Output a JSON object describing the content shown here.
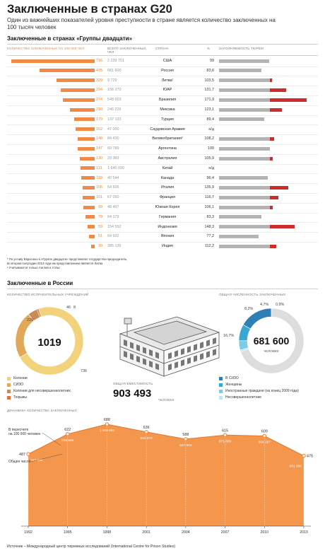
{
  "header": {
    "title": "Заключенные в странах G20",
    "intro": "Один из важнейших показателей уровня преступности в стране является количество заключенных на 100 тысяч человек"
  },
  "g20": {
    "section_title": "Заключенные в странах «Группы двадцати»",
    "col_rate": "КОЛИЧЕСТВО ЗАКЛЮЧЕННЫХ НА 100 000 ЧЕЛ.",
    "col_total_1": "ВСЕГО ЗАКЛЮЧЕННЫХ,",
    "col_total_2": "ЧЕЛ.",
    "col_country": "СТРАНА",
    "col_pct": "%",
    "col_occupancy": "ЗАПОЛНЯЕМОСТЬ ТЮРЕМ",
    "notes": [
      "* По уставу Евросоюз в «Группе двадцати» представляет государство-председатель,",
      "  во втором полугодии 2013 года им представлением является Литва",
      "² Учитываются только Англия и Уэльс"
    ]
  },
  "russia": {
    "section_title": "Заключенные в России",
    "institutions": {
      "label": "КОЛИЧЕСТВО ИСПРАВИТЕЛЬНЫХ УЧРЕЖДЕНИЙ",
      "total": "1019",
      "slice_labels": [
        "736",
        "229",
        "46",
        "8"
      ],
      "legend": [
        "Колонии",
        "СИЗО",
        "Колонии для несовершеннолетних",
        "Тюрьмы"
      ],
      "colors": [
        "#f2d27a",
        "#e2a85a",
        "#c98a55",
        "#d9773a"
      ]
    },
    "capacity": {
      "label": "ОБЩАЯ ВМЕСТИМОСТЬ",
      "value": "903 493",
      "unit": "ЧЕЛОВЕК"
    },
    "prisoners": {
      "label": "ОБЩАЯ ЧИСЛЕННОСТЬ ЗАКЛЮЧЕННЫХ",
      "total": "681 600",
      "unit": "ЧЕЛОВЕК",
      "slice_labels": [
        "16,7%",
        "8,2%",
        "4,7%",
        "0,9%"
      ],
      "legend": [
        "В СИЗО",
        "Женщины",
        "Иностранные граждане (на конец 2009 года)",
        "Несовершеннолетние"
      ],
      "colors": [
        "#2e7fb4",
        "#3aa6d4",
        "#7ccbe8",
        "#bfe3f2"
      ]
    },
    "dynamics": {
      "title": "ДИНАМИКА КОЛИЧЕСТВА ЗАКЛЮЧЕННЫХ",
      "ann_per100k_1": "В пересчете",
      "ann_per100k_2": "на 100 000 человек",
      "ann_total": "Общее число"
    }
  },
  "source": "Источник – Международный центр тюремных исследований (International Centre for Prison Studies)",
  "chart_data": [
    {
      "type": "table",
      "columns": [
        "Количество заключенных на 100 000 чел.",
        "Всего заключенных, чел.",
        "Страна",
        "%",
        "Заполняемость тюрем"
      ],
      "rows": [
        {
          "rate": 716,
          "total": "2 239 751",
          "country": "США",
          "pct": "99",
          "occupancy": 99
        },
        {
          "rate": 475,
          "total": "681 600",
          "country": "Россия",
          "pct": "83,6",
          "occupancy": 83.6
        },
        {
          "rate": 329,
          "total": "9 729",
          "country": "Литва¹",
          "pct": "103,5",
          "occupancy": 103.5
        },
        {
          "rate": 294,
          "total": "156 370",
          "country": "ЮАР",
          "pct": "131,7",
          "occupancy": 131.7
        },
        {
          "rate": 274,
          "total": "548 003",
          "country": "Бразилия",
          "pct": "171,9",
          "occupancy": 171.9
        },
        {
          "rate": 210,
          "total": "246 226",
          "country": "Мексика",
          "pct": "123,1",
          "occupancy": 123.1
        },
        {
          "rate": 179,
          "total": "137 133",
          "country": "Турция",
          "pct": "89,4",
          "occupancy": 89.4
        },
        {
          "rate": 162,
          "total": "47 000",
          "country": "Саудовская Аравия",
          "pct": "н/д",
          "occupancy": null
        },
        {
          "rate": 148,
          "total": "84 430",
          "country": "Великобритания²",
          "pct": "108,2",
          "occupancy": 108.2
        },
        {
          "rate": 147,
          "total": "60 789",
          "country": "Аргентина",
          "pct": "100",
          "occupancy": 100
        },
        {
          "rate": 130,
          "total": "29 383",
          "country": "Австралия",
          "pct": "105,9",
          "occupancy": 105.9
        },
        {
          "rate": 121,
          "total": "1 640 000",
          "country": "Китай",
          "pct": "н/д",
          "occupancy": null
        },
        {
          "rate": 118,
          "total": "40 544",
          "country": "Канада",
          "pct": "96,4",
          "occupancy": 96.4
        },
        {
          "rate": 106,
          "total": "64 835",
          "country": "Италия",
          "pct": "135,9",
          "occupancy": 135.9
        },
        {
          "rate": 101,
          "total": "67 050",
          "country": "Франция",
          "pct": "116,7",
          "occupancy": 116.7
        },
        {
          "rate": 99,
          "total": "48 497",
          "country": "Южная Корея",
          "pct": "106,1",
          "occupancy": 106.1
        },
        {
          "rate": 79,
          "total": "64 379",
          "country": "Германия",
          "pct": "83,3",
          "occupancy": 83.3
        },
        {
          "rate": 59,
          "total": "154 552",
          "country": "Индонезия",
          "pct": "148,3",
          "occupancy": 148.3
        },
        {
          "rate": 51,
          "total": "64 932",
          "country": "Япония",
          "pct": "77,2",
          "occupancy": 77.2
        },
        {
          "rate": 30,
          "total": "385 135",
          "country": "Индия",
          "pct": "112,2",
          "occupancy": 112.2
        }
      ]
    },
    {
      "type": "pie",
      "title": "КОЛИЧЕСТВО ИСПРАВИТЕЛЬНЫХ УЧРЕЖДЕНИЙ",
      "categories": [
        "Колонии",
        "СИЗО",
        "Колонии для несовершеннолетних",
        "Тюрьмы"
      ],
      "values": [
        736,
        229,
        46,
        8
      ]
    },
    {
      "type": "pie",
      "title": "ОБЩАЯ ЧИСЛЕННОСТЬ ЗАКЛЮЧЕННЫХ",
      "categories": [
        "В СИЗО",
        "Женщины",
        "Иностранные граждане (на конец 2009 года)",
        "Несовершеннолетние"
      ],
      "values": [
        16.7,
        8.2,
        4.7,
        0.9
      ]
    },
    {
      "type": "area",
      "title": "ДИНАМИКА КОЛИЧЕСТВА ЗАКЛЮЧЕННЫХ",
      "x": [
        1992,
        1995,
        1998,
        2001,
        2004,
        2007,
        2010,
        2013
      ],
      "series": [
        {
          "name": "В пересчете на 100 000 человек",
          "values": [
            487,
            622,
            688,
            636,
            588,
            615,
            609,
            475
          ]
        },
        {
          "name": "Общее число",
          "values": [
            "722 636",
            "920 685",
            "1 009 863",
            "923 072",
            "847 004",
            "871 609",
            "864 197",
            "681 600"
          ]
        }
      ]
    }
  ]
}
